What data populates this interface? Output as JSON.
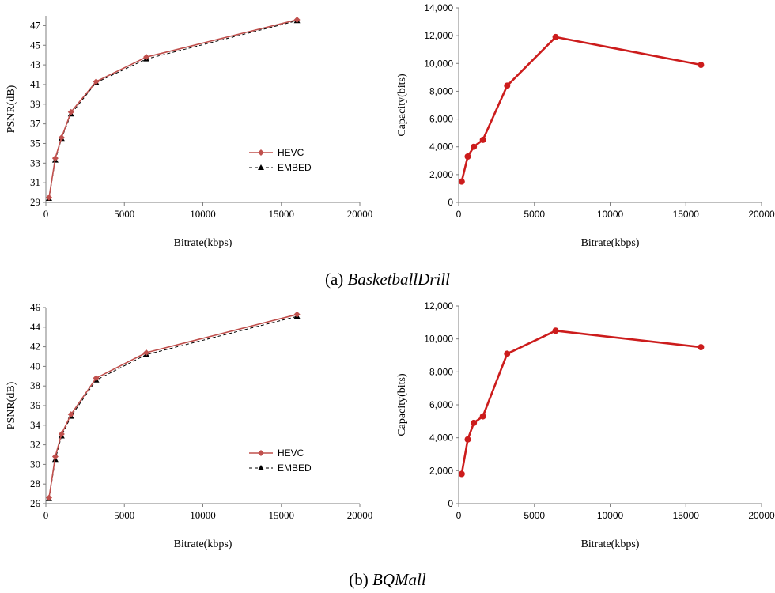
{
  "captions": [
    {
      "label": "(a)",
      "name": "BasketballDrill"
    },
    {
      "label": "(b)",
      "name": "BQMall"
    }
  ],
  "colors": {
    "hevc": "#c0504d",
    "embed": "#000000",
    "capacity": "#cc1c1c",
    "axis": "#7f7f7f"
  },
  "chart_data": [
    {
      "type": "line",
      "xlabel": "Bitrate(kbps)",
      "ylabel": "PSNR(dB)",
      "xlim": [
        0,
        20000
      ],
      "ylim": [
        29,
        48
      ],
      "xticks": [
        0,
        5000,
        10000,
        15000,
        20000
      ],
      "xtick_labels": [
        "0",
        "5000",
        "10000",
        "15000",
        "20000"
      ],
      "yticks": [
        29,
        31,
        33,
        35,
        37,
        39,
        41,
        43,
        45,
        47
      ],
      "ytick_labels": [
        "29",
        "31",
        "33",
        "35",
        "37",
        "39",
        "41",
        "43",
        "45",
        "47"
      ],
      "legend_position": "right",
      "series": [
        {
          "name": "HEVC",
          "marker": "diamond",
          "style": "solid",
          "x": [
            200,
            600,
            1000,
            1600,
            3200,
            6400,
            16000
          ],
          "y": [
            29.5,
            33.5,
            35.6,
            38.2,
            41.3,
            43.8,
            47.6
          ]
        },
        {
          "name": "EMBED",
          "marker": "triangle",
          "style": "dashed",
          "x": [
            200,
            600,
            1000,
            1600,
            3200,
            6400,
            16000
          ],
          "y": [
            29.4,
            33.3,
            35.5,
            38.0,
            41.2,
            43.6,
            47.5
          ]
        }
      ]
    },
    {
      "type": "line",
      "xlabel": "Bitrate(kbps)",
      "ylabel": "Capacity(bits)",
      "xlim": [
        0,
        20000
      ],
      "ylim": [
        0,
        14000
      ],
      "xticks": [
        0,
        5000,
        10000,
        15000,
        20000
      ],
      "xtick_labels": [
        "0",
        "5000",
        "10000",
        "15000",
        "20000"
      ],
      "yticks": [
        0,
        2000,
        4000,
        6000,
        8000,
        10000,
        12000,
        14000
      ],
      "ytick_labels": [
        "0",
        "2,000",
        "4,000",
        "6,000",
        "8,000",
        "10,000",
        "12,000",
        "14,000"
      ],
      "series": [
        {
          "marker": "circle",
          "style": "solid",
          "x": [
            200,
            600,
            1000,
            1600,
            3200,
            6400,
            16000
          ],
          "y": [
            1500,
            3300,
            4000,
            4500,
            8400,
            11900,
            9900
          ]
        }
      ]
    },
    {
      "type": "line",
      "xlabel": "Bitrate(kbps)",
      "ylabel": "PSNR(dB)",
      "xlim": [
        0,
        20000
      ],
      "ylim": [
        26,
        46
      ],
      "xticks": [
        0,
        5000,
        10000,
        15000,
        20000
      ],
      "xtick_labels": [
        "0",
        "5000",
        "10000",
        "15000",
        "20000"
      ],
      "yticks": [
        26,
        28,
        30,
        32,
        34,
        36,
        38,
        40,
        42,
        44,
        46
      ],
      "ytick_labels": [
        "26",
        "28",
        "30",
        "32",
        "34",
        "36",
        "38",
        "40",
        "42",
        "44",
        "46"
      ],
      "legend_position": "right",
      "series": [
        {
          "name": "HEVC",
          "marker": "diamond",
          "style": "solid",
          "x": [
            200,
            600,
            1000,
            1600,
            3200,
            6400,
            16000
          ],
          "y": [
            26.6,
            30.8,
            33.1,
            35.1,
            38.8,
            41.4,
            45.3
          ]
        },
        {
          "name": "EMBED",
          "marker": "triangle",
          "style": "dashed",
          "x": [
            200,
            600,
            1000,
            1600,
            3200,
            6400,
            16000
          ],
          "y": [
            26.5,
            30.5,
            32.9,
            34.9,
            38.6,
            41.2,
            45.1
          ]
        }
      ]
    },
    {
      "type": "line",
      "xlabel": "Bitrate(kbps)",
      "ylabel": "Capacity(bits)",
      "xlim": [
        0,
        20000
      ],
      "ylim": [
        0,
        12000
      ],
      "xticks": [
        0,
        5000,
        10000,
        15000,
        20000
      ],
      "xtick_labels": [
        "0",
        "5000",
        "10000",
        "15000",
        "20000"
      ],
      "yticks": [
        0,
        2000,
        4000,
        6000,
        8000,
        10000,
        12000
      ],
      "ytick_labels": [
        "0",
        "2,000",
        "4,000",
        "6,000",
        "8,000",
        "10,000",
        "12,000"
      ],
      "series": [
        {
          "marker": "circle",
          "style": "solid",
          "x": [
            200,
            600,
            1000,
            1600,
            3200,
            6400,
            16000
          ],
          "y": [
            1800,
            3900,
            4900,
            5300,
            9100,
            10500,
            9500
          ]
        }
      ]
    }
  ]
}
